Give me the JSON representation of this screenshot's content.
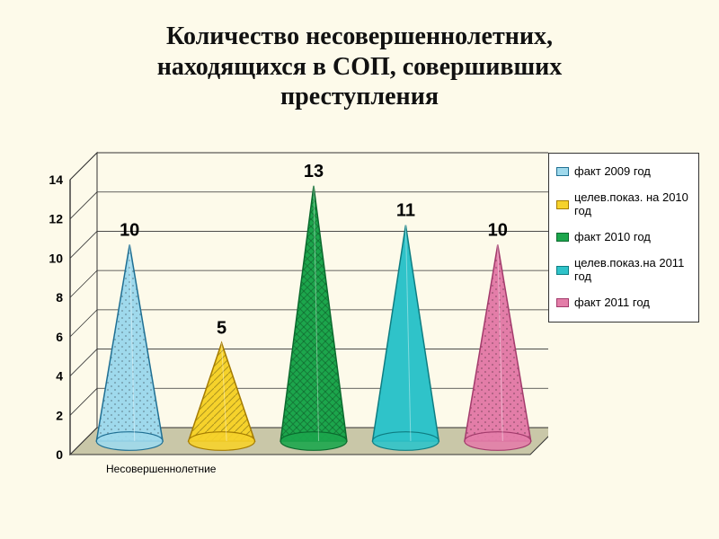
{
  "title_lines": [
    "Количество несовершеннолетних,",
    "находящихся в СОП, совершивших",
    "преступления"
  ],
  "title_fontsize": 28,
  "chart": {
    "type": "cone",
    "background_color": "#fdfaea",
    "plot_bg": "#fdfaea",
    "grid_color": "#333333",
    "floor_color": "#c9c7a8",
    "ylim": [
      0,
      14
    ],
    "ytick_step": 2,
    "yticks": [
      0,
      2,
      4,
      6,
      8,
      10,
      12,
      14
    ],
    "axis_font": "Arial",
    "axis_fontsize": 14,
    "axis_fontweight": "bold",
    "value_label_fontsize": 20,
    "value_label_fontweight": "bold",
    "x_category_label": "Несовершеннолетние",
    "x_category_fontsize": 12,
    "series": [
      {
        "label": "факт 2009 год",
        "value": 10,
        "fill": "#9fd9ec",
        "edge": "#1f6f93",
        "hatch": "dots"
      },
      {
        "label": "целев.показ. на 2010 год",
        "value": 5,
        "fill": "#f6d22b",
        "edge": "#a57c00",
        "hatch": "diag"
      },
      {
        "label": "факт 2010 год",
        "value": 13,
        "fill": "#1ca64c",
        "edge": "#0b6a2e",
        "hatch": "cross"
      },
      {
        "label": "целев.показ.на 2011 год",
        "value": 11,
        "fill": "#2fc3c9",
        "edge": "#0e7d82",
        "hatch": "none"
      },
      {
        "label": "факт 2011 год",
        "value": 10,
        "fill": "#e37da8",
        "edge": "#a33b6c",
        "hatch": "dots"
      }
    ],
    "legend_fontsize": 13,
    "legend_font": "Arial"
  }
}
